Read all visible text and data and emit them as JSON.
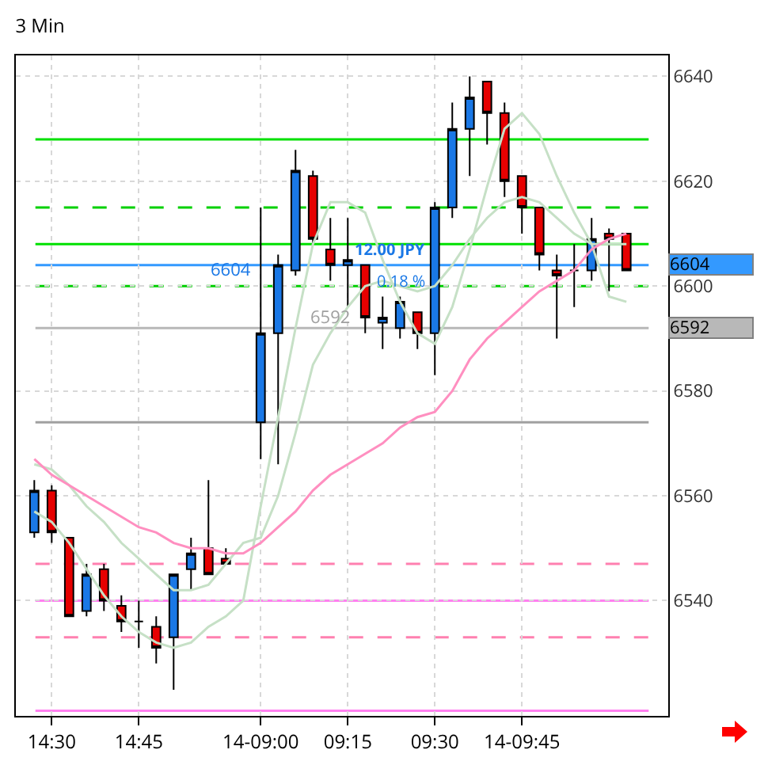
{
  "chart_data": {
    "type": "candlestick",
    "title": "3 Min",
    "categories": [
      null,
      "14:30",
      null,
      null,
      null,
      null,
      "14:45",
      null,
      null,
      null,
      null,
      null,
      null,
      "14-09:00",
      null,
      null,
      null,
      null,
      "09:15",
      null,
      null,
      null,
      null,
      "09:30",
      null,
      null,
      null,
      null,
      "14-09:45",
      null,
      null,
      null,
      null,
      null,
      null
    ],
    "ohlc": [
      [
        6553,
        6563,
        6552,
        6561
      ],
      [
        6561,
        6562,
        6551,
        6553
      ],
      [
        6552,
        6552,
        6537,
        6537
      ],
      [
        6538,
        6547,
        6537,
        6545
      ],
      [
        6546,
        6547,
        6538,
        6540
      ],
      [
        6539,
        6541,
        6534,
        6536
      ],
      [
        6536,
        6540,
        6531,
        6536
      ],
      [
        6535,
        6537,
        6528,
        6531
      ],
      [
        6533,
        6545,
        6523,
        6545
      ],
      [
        6546,
        6552,
        6542,
        6549
      ],
      [
        6550,
        6563,
        6545,
        6545
      ],
      [
        6548,
        6550,
        6547,
        6547
      ],
      null,
      [
        6574,
        6615,
        6567,
        6591
      ],
      [
        6591,
        6606,
        6566,
        6604
      ],
      [
        6603,
        6626,
        6602,
        6622
      ],
      [
        6621,
        6622,
        6608,
        6609
      ],
      [
        6607,
        6613,
        6601,
        6604
      ],
      [
        6604,
        6613,
        6596,
        6605
      ],
      [
        6604,
        6604,
        6591,
        6594
      ],
      [
        6593,
        6598,
        6588,
        6594
      ],
      [
        6592,
        6598,
        6590,
        6597
      ],
      [
        6595,
        6595,
        6588,
        6591
      ],
      [
        6591,
        6616,
        6583,
        6615
      ],
      [
        6615,
        6635,
        6613,
        6630
      ],
      [
        6630,
        6640,
        6621,
        6636
      ],
      [
        6639,
        6639,
        6627,
        6633
      ],
      [
        6633,
        6635,
        6617,
        6620
      ],
      [
        6621,
        6621,
        6610,
        6615
      ],
      [
        6615,
        6615,
        6603,
        6606
      ],
      [
        6603,
        6606,
        6590,
        6602
      ],
      [
        6603,
        6608,
        6596,
        6603
      ],
      [
        6603,
        6613,
        6601,
        6609
      ],
      [
        6610,
        6611,
        6599,
        6609
      ],
      [
        6610,
        6610,
        6603,
        6603
      ]
    ],
    "colors": [
      "#1a78e6",
      "#e60000",
      "#e60000",
      "#1a78e6",
      "#e60000",
      "#e60000",
      "#000000",
      "#e60000",
      "#1a78e6",
      "#1a78e6",
      "#e60000",
      "#e60000",
      null,
      "#1a78e6",
      "#1a78e6",
      "#1a78e6",
      "#e60000",
      "#e60000",
      "#1a78e6",
      "#e60000",
      "#1a78e6",
      "#1a78e6",
      "#e60000",
      "#1a78e6",
      "#1a78e6",
      "#1a78e6",
      "#e60000",
      "#e60000",
      "#e60000",
      "#e60000",
      "#e60000",
      "#000000",
      "#1a78e6",
      "#e60000",
      "#e60000"
    ],
    "series": [
      {
        "type": "line",
        "color": "#c6e0c6",
        "values": [
          6557,
          6555,
          6551,
          6546,
          6541,
          6537,
          6534,
          6532,
          6531,
          6532,
          6535,
          6537,
          6540,
          6558,
          6575,
          6592,
          6608,
          6616,
          6616,
          6614,
          6605,
          6597,
          6591,
          6589,
          6596,
          6607,
          6619,
          6630,
          6633,
          6629,
          6621,
          6614,
          6608,
          6598,
          6597
        ]
      },
      {
        "type": "line",
        "color": "#c6e0c6",
        "values": [
          6566,
          6565,
          6562,
          6558,
          6555,
          6551,
          6548,
          6545,
          6542,
          6542,
          6543,
          6547,
          6551,
          6552,
          6560,
          6572,
          6585,
          6591,
          6596,
          6600,
          6601,
          6600,
          6599,
          6600,
          6604,
          6609,
          6613,
          6616,
          6617,
          6616,
          6613,
          6610,
          6608,
          6608,
          6608
        ]
      },
      {
        "type": "line",
        "color": "#ff8fc0",
        "values": [
          6567,
          6564,
          6562,
          6560,
          6558,
          6556,
          6554,
          6553,
          6551,
          6550,
          6550,
          6549,
          6549,
          6551,
          6554,
          6557,
          6561,
          6564,
          6566,
          6568,
          6570,
          6573,
          6575,
          6576,
          6580,
          6586,
          6590,
          6593,
          6596,
          6599,
          6601,
          6603,
          6607,
          6609,
          6610
        ]
      }
    ],
    "ylim": [
      6518,
      6644
    ],
    "yticks": [
      6540,
      6560,
      6580,
      6600,
      6620,
      6640
    ],
    "grid": true,
    "ref_lines": [
      {
        "axis": "y",
        "value": 6628,
        "color": "#00e000",
        "line_style": "solid"
      },
      {
        "axis": "y",
        "value": 6615,
        "color": "#00d000",
        "line_style": "dashed"
      },
      {
        "axis": "y",
        "value": 6608,
        "color": "#00e000",
        "line_style": "solid"
      },
      {
        "axis": "y",
        "value": 6600,
        "color": "#00d000",
        "line_style": "dashed"
      },
      {
        "axis": "y",
        "value": 6574,
        "color": "#a0a0a0",
        "line_style": "solid"
      },
      {
        "axis": "y",
        "value": 6547,
        "color": "#ff80b0",
        "line_style": "dashed"
      },
      {
        "axis": "y",
        "value": 6540,
        "color": "#ff80f0",
        "line_style": "solid"
      },
      {
        "axis": "y",
        "value": 6533,
        "color": "#ff80b0",
        "line_style": "dashed"
      },
      {
        "axis": "y",
        "value": 6519,
        "color": "#ff80f0",
        "line_style": "solid"
      },
      {
        "axis": "y",
        "value": 6604,
        "color": "#3399ff",
        "line_style": "solid",
        "label": "6604"
      },
      {
        "axis": "y",
        "value": 6592,
        "color": "#b8b8b8",
        "line_style": "solid",
        "label": "6592"
      }
    ],
    "annotations": [
      {
        "text": "12.00 JPY",
        "y": 6607
      },
      {
        "text": "0.18 %",
        "y": 6601
      },
      {
        "text": "6604",
        "y": 6603
      },
      {
        "text": "6592",
        "y": 6594
      }
    ]
  }
}
